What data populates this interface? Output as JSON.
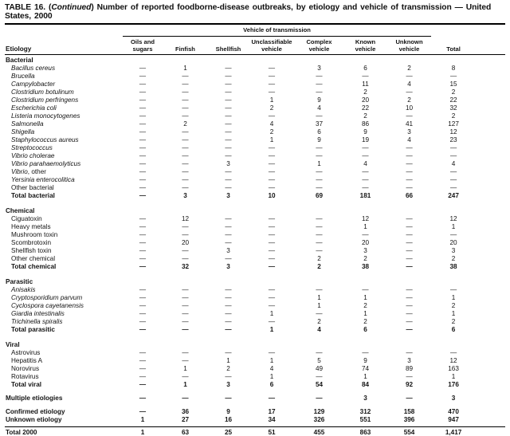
{
  "colors": {
    "text": "#141414",
    "rule": "#000000",
    "background": "#ffffff"
  },
  "title": {
    "part1": "TABLE 16. (",
    "part2": "Continued",
    "part3": ") Number of reported foodborne-disease outbreaks, by etiology and vehicle of transmission — United",
    "line2": "States, 2000"
  },
  "table": {
    "group_header": "Vehicle of transmission",
    "etiology_header": "Etiology",
    "columns": [
      "Oils and\nsugars",
      "Finfish",
      "Shellfish",
      "Unclassifiable\nvehicle",
      "Complex\nvehicle",
      "Known\nvehicle",
      "Unknown\nvehicle",
      "Total"
    ],
    "rows": [
      {
        "type": "section",
        "label": "Bacterial",
        "values": []
      },
      {
        "type": "item",
        "italic": true,
        "label": "Bacillus cereus",
        "values": [
          "—",
          "1",
          "—",
          "—",
          "3",
          "6",
          "2",
          "8"
        ]
      },
      {
        "type": "item",
        "italic": true,
        "label": "Brucella",
        "values": [
          "—",
          "—",
          "—",
          "—",
          "—",
          "—",
          "—",
          "—"
        ]
      },
      {
        "type": "item",
        "italic": true,
        "label": "Campylobacter",
        "values": [
          "—",
          "—",
          "—",
          "—",
          "—",
          "11",
          "4",
          "15"
        ]
      },
      {
        "type": "item",
        "italic": true,
        "label": "Clostridium botulinum",
        "values": [
          "—",
          "—",
          "—",
          "—",
          "—",
          "2",
          "—",
          "2"
        ]
      },
      {
        "type": "item",
        "italic": true,
        "label": "Clostridium perfringens",
        "values": [
          "—",
          "—",
          "—",
          "1",
          "9",
          "20",
          "2",
          "22"
        ]
      },
      {
        "type": "item",
        "italic": true,
        "label": "Escherichia coli",
        "values": [
          "—",
          "—",
          "—",
          "2",
          "4",
          "22",
          "10",
          "32"
        ]
      },
      {
        "type": "item",
        "italic": true,
        "label": "Listeria monocytogenes",
        "values": [
          "—",
          "—",
          "—",
          "—",
          "—",
          "2",
          "—",
          "2"
        ]
      },
      {
        "type": "item",
        "italic": true,
        "label": "Salmonella",
        "values": [
          "—",
          "2",
          "—",
          "4",
          "37",
          "86",
          "41",
          "127"
        ]
      },
      {
        "type": "item",
        "italic": true,
        "label": "Shigella",
        "values": [
          "—",
          "—",
          "—",
          "2",
          "6",
          "9",
          "3",
          "12"
        ]
      },
      {
        "type": "item",
        "italic": true,
        "label": "Staphylococcus aureus",
        "values": [
          "—",
          "—",
          "—",
          "1",
          "9",
          "19",
          "4",
          "23"
        ]
      },
      {
        "type": "item",
        "italic": true,
        "label": "Streptococcus",
        "values": [
          "—",
          "—",
          "—",
          "—",
          "—",
          "—",
          "—",
          "—"
        ]
      },
      {
        "type": "item",
        "italic": true,
        "label": "Vibrio cholerae",
        "values": [
          "—",
          "—",
          "—",
          "—",
          "—",
          "—",
          "—",
          "—"
        ]
      },
      {
        "type": "item",
        "italic": true,
        "label": "Vibrio parahaemolyticus",
        "values": [
          "—",
          "—",
          "3",
          "—",
          "1",
          "4",
          "—",
          "4"
        ]
      },
      {
        "type": "item",
        "italic": true,
        "label": "Vibrio",
        "label2": ", other",
        "values": [
          "—",
          "—",
          "—",
          "—",
          "—",
          "—",
          "—",
          "—"
        ]
      },
      {
        "type": "item",
        "italic": true,
        "label": "Yersinia enterocolitica",
        "values": [
          "—",
          "—",
          "—",
          "—",
          "—",
          "—",
          "—",
          "—"
        ]
      },
      {
        "type": "item",
        "label": "Other bacterial",
        "values": [
          "—",
          "—",
          "—",
          "—",
          "—",
          "—",
          "—",
          "—"
        ]
      },
      {
        "type": "total",
        "label": "Total bacterial",
        "values": [
          "—",
          "3",
          "3",
          "10",
          "69",
          "181",
          "66",
          "247"
        ]
      },
      {
        "type": "spacer"
      },
      {
        "type": "section",
        "label": "Chemical",
        "values": []
      },
      {
        "type": "item",
        "label": "Ciguatoxin",
        "values": [
          "—",
          "12",
          "—",
          "—",
          "—",
          "12",
          "—",
          "12"
        ]
      },
      {
        "type": "item",
        "label": "Heavy metals",
        "values": [
          "—",
          "—",
          "—",
          "—",
          "—",
          "1",
          "—",
          "1"
        ]
      },
      {
        "type": "item",
        "label": "Mushroom toxin",
        "values": [
          "—",
          "—",
          "—",
          "—",
          "—",
          "—",
          "—",
          "—"
        ]
      },
      {
        "type": "item",
        "label": "Scombrotoxin",
        "values": [
          "—",
          "20",
          "—",
          "—",
          "—",
          "20",
          "—",
          "20"
        ]
      },
      {
        "type": "item",
        "label": "Shellfish toxin",
        "values": [
          "—",
          "—",
          "3",
          "—",
          "—",
          "3",
          "—",
          "3"
        ]
      },
      {
        "type": "item",
        "label": "Other chemical",
        "values": [
          "—",
          "—",
          "—",
          "—",
          "2",
          "2",
          "—",
          "2"
        ]
      },
      {
        "type": "total",
        "label": "Total chemical",
        "values": [
          "—",
          "32",
          "3",
          "—",
          "2",
          "38",
          "—",
          "38"
        ]
      },
      {
        "type": "spacer"
      },
      {
        "type": "section",
        "label": "Parasitic",
        "values": []
      },
      {
        "type": "item",
        "italic": true,
        "label": "Anisakis",
        "values": [
          "—",
          "—",
          "—",
          "—",
          "—",
          "—",
          "—",
          "—"
        ]
      },
      {
        "type": "item",
        "italic": true,
        "label": "Cryptosporidium parvum",
        "values": [
          "—",
          "—",
          "—",
          "—",
          "1",
          "1",
          "—",
          "1"
        ]
      },
      {
        "type": "item",
        "italic": true,
        "label": "Cyclospora cayetanensis",
        "values": [
          "—",
          "—",
          "—",
          "—",
          "1",
          "2",
          "—",
          "2"
        ]
      },
      {
        "type": "item",
        "italic": true,
        "label": "Giardia intestinalis",
        "values": [
          "—",
          "—",
          "—",
          "1",
          "—",
          "1",
          "—",
          "1"
        ]
      },
      {
        "type": "item",
        "italic": true,
        "label": "Trichinella spiralis",
        "values": [
          "—",
          "—",
          "—",
          "—",
          "2",
          "2",
          "—",
          "2"
        ]
      },
      {
        "type": "total",
        "label": "Total parasitic",
        "values": [
          "—",
          "—",
          "—",
          "1",
          "4",
          "6",
          "—",
          "6"
        ]
      },
      {
        "type": "spacer"
      },
      {
        "type": "section",
        "label": "Viral",
        "values": []
      },
      {
        "type": "item",
        "label": "Astrovirus",
        "values": [
          "—",
          "—",
          "—",
          "—",
          "—",
          "—",
          "—",
          "—"
        ]
      },
      {
        "type": "item",
        "label": "Hepatitis A",
        "values": [
          "—",
          "—",
          "1",
          "1",
          "5",
          "9",
          "3",
          "12"
        ]
      },
      {
        "type": "item",
        "label": "Norovirus",
        "values": [
          "—",
          "1",
          "2",
          "4",
          "49",
          "74",
          "89",
          "163"
        ]
      },
      {
        "type": "item",
        "label": "Rotavirus",
        "values": [
          "—",
          "—",
          "—",
          "1",
          "—",
          "1",
          "—",
          "1"
        ]
      },
      {
        "type": "total",
        "label": "Total viral",
        "values": [
          "—",
          "1",
          "3",
          "6",
          "54",
          "84",
          "92",
          "176"
        ]
      },
      {
        "type": "spacer"
      },
      {
        "type": "standalone",
        "label": "Multiple etiologies",
        "values": [
          "—",
          "—",
          "—",
          "—",
          "—",
          "3",
          "—",
          "3"
        ]
      },
      {
        "type": "spacer"
      },
      {
        "type": "standalone",
        "label": "Confirmed etiology",
        "values": [
          "—",
          "36",
          "9",
          "17",
          "129",
          "312",
          "158",
          "470"
        ]
      },
      {
        "type": "standalone",
        "label": "Unknown etiology",
        "values": [
          "1",
          "27",
          "16",
          "34",
          "326",
          "551",
          "396",
          "947"
        ]
      },
      {
        "type": "spacer-sm"
      },
      {
        "type": "grand",
        "label": "Total 2000",
        "values": [
          "1",
          "63",
          "25",
          "51",
          "455",
          "863",
          "554",
          "1,417"
        ]
      }
    ]
  }
}
